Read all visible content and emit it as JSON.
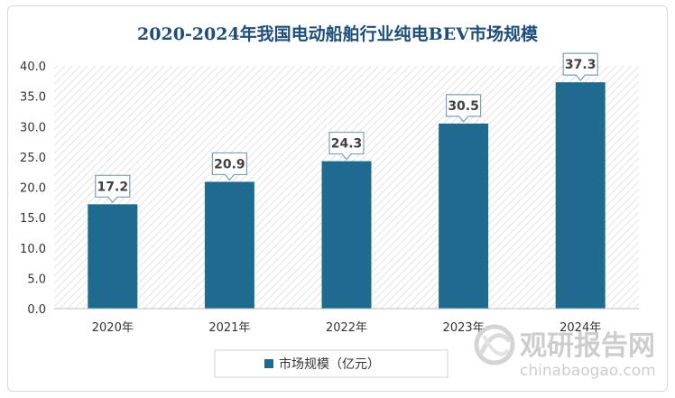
{
  "chart_data": {
    "type": "bar",
    "title": "2020-2024年我国电动船舶行业纯电BEV市场规模",
    "categories": [
      "2020年",
      "2021年",
      "2022年",
      "2023年",
      "2024年"
    ],
    "series": [
      {
        "name": "市场规模（亿元）",
        "values": [
          17.2,
          20.9,
          24.3,
          30.5,
          37.3
        ],
        "color": "#1f6b8f"
      }
    ],
    "data_labels": [
      "17.2",
      "20.9",
      "24.3",
      "30.5",
      "37.3"
    ],
    "ylim": [
      0,
      40
    ],
    "yticks": [
      "0.0",
      "5.0",
      "10.0",
      "15.0",
      "20.0",
      "25.0",
      "30.0",
      "35.0",
      "40.0"
    ],
    "legend": "bottom",
    "grid": false,
    "plot_background": "hatched"
  },
  "watermark": {
    "name_cn": "观研报告网",
    "domain": "chinabaogao.com",
    "logo_icon": "swirl-logo-icon"
  }
}
